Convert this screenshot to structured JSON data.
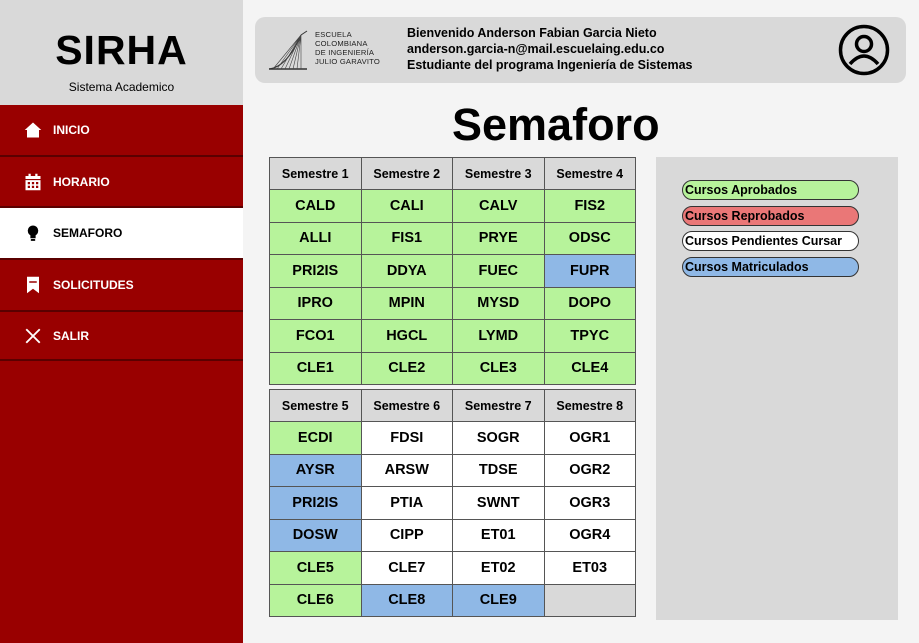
{
  "brand": {
    "title": "SIRHA",
    "subtitle": "Sistema Academico"
  },
  "sidebar": {
    "items": [
      {
        "label": "INICIO",
        "icon": "home-icon"
      },
      {
        "label": "HORARIO",
        "icon": "calendar-icon"
      },
      {
        "label": "SEMAFORO",
        "icon": "lightbulb-icon",
        "active": true
      },
      {
        "label": "SOLICITUDES",
        "icon": "bookmark-icon"
      },
      {
        "label": "SALIR",
        "icon": "close-icon"
      }
    ]
  },
  "header": {
    "logo_lines": [
      "Escuela",
      "Colombiana",
      "de Ingeniería",
      "Julio Garavito"
    ],
    "welcome": "Bienvenido Anderson Fabian Garcia Nieto",
    "email": "anderson.garcia-n@mail.escuelaing.edu.co",
    "program": "Estudiante del programa Ingeniería de Sistemas",
    "avatar_icon": "user-icon"
  },
  "page": {
    "title": "Semaforo"
  },
  "tables": [
    {
      "headers": [
        "Semestre 1",
        "Semestre 2",
        "Semestre 3",
        "Semestre 4"
      ],
      "rows": [
        [
          {
            "c": "CALD",
            "s": "approved"
          },
          {
            "c": "CALI",
            "s": "approved"
          },
          {
            "c": "CALV",
            "s": "approved"
          },
          {
            "c": "FIS2",
            "s": "approved"
          }
        ],
        [
          {
            "c": "ALLI",
            "s": "approved"
          },
          {
            "c": "FIS1",
            "s": "approved"
          },
          {
            "c": "PRYE",
            "s": "approved"
          },
          {
            "c": "ODSC",
            "s": "approved"
          }
        ],
        [
          {
            "c": "PRI2IS",
            "s": "approved"
          },
          {
            "c": "DDYA",
            "s": "approved"
          },
          {
            "c": "FUEC",
            "s": "approved"
          },
          {
            "c": "FUPR",
            "s": "enrolled"
          }
        ],
        [
          {
            "c": "IPRO",
            "s": "approved"
          },
          {
            "c": "MPIN",
            "s": "approved"
          },
          {
            "c": "MYSD",
            "s": "approved"
          },
          {
            "c": "DOPO",
            "s": "approved"
          }
        ],
        [
          {
            "c": "FCO1",
            "s": "approved"
          },
          {
            "c": "HGCL",
            "s": "approved"
          },
          {
            "c": "LYMD",
            "s": "approved"
          },
          {
            "c": "TPYC",
            "s": "approved"
          }
        ],
        [
          {
            "c": "CLE1",
            "s": "approved"
          },
          {
            "c": "CLE2",
            "s": "approved"
          },
          {
            "c": "CLE3",
            "s": "approved"
          },
          {
            "c": "CLE4",
            "s": "approved"
          }
        ]
      ]
    },
    {
      "headers": [
        "Semestre 5",
        "Semestre 6",
        "Semestre 7",
        "Semestre 8"
      ],
      "rows": [
        [
          {
            "c": "ECDI",
            "s": "approved"
          },
          {
            "c": "FDSI",
            "s": "pending"
          },
          {
            "c": "SOGR",
            "s": "pending"
          },
          {
            "c": "OGR1",
            "s": "pending"
          }
        ],
        [
          {
            "c": "AYSR",
            "s": "enrolled"
          },
          {
            "c": "ARSW",
            "s": "pending"
          },
          {
            "c": "TDSE",
            "s": "pending"
          },
          {
            "c": "OGR2",
            "s": "pending"
          }
        ],
        [
          {
            "c": "PRI2IS",
            "s": "enrolled"
          },
          {
            "c": "PTIA",
            "s": "pending"
          },
          {
            "c": "SWNT",
            "s": "pending"
          },
          {
            "c": "OGR3",
            "s": "pending"
          }
        ],
        [
          {
            "c": "DOSW",
            "s": "enrolled"
          },
          {
            "c": "CIPP",
            "s": "pending"
          },
          {
            "c": "ET01",
            "s": "pending"
          },
          {
            "c": "OGR4",
            "s": "pending"
          }
        ],
        [
          {
            "c": "CLE5",
            "s": "approved"
          },
          {
            "c": "CLE7",
            "s": "pending"
          },
          {
            "c": "ET02",
            "s": "pending"
          },
          {
            "c": "ET03",
            "s": "pending"
          }
        ],
        [
          {
            "c": "CLE6",
            "s": "approved"
          },
          {
            "c": "CLE8",
            "s": "enrolled"
          },
          {
            "c": "CLE9",
            "s": "enrolled"
          },
          {
            "c": "",
            "s": "empty"
          }
        ]
      ]
    }
  ],
  "legend": [
    {
      "label": "Cursos Aprobados",
      "s": "approved"
    },
    {
      "label": "Cursos Reprobados",
      "s": "failed"
    },
    {
      "label": "Cursos Pendientes Cursar",
      "s": "pending"
    },
    {
      "label": "Cursos Matriculados",
      "s": "enrolled"
    }
  ],
  "colors": {
    "sidebar": "#990000",
    "approved": "#b7f39b",
    "failed": "#ea7777",
    "pending": "#ffffff",
    "enrolled": "#8fb8e6",
    "empty": "#d9d9d9"
  }
}
